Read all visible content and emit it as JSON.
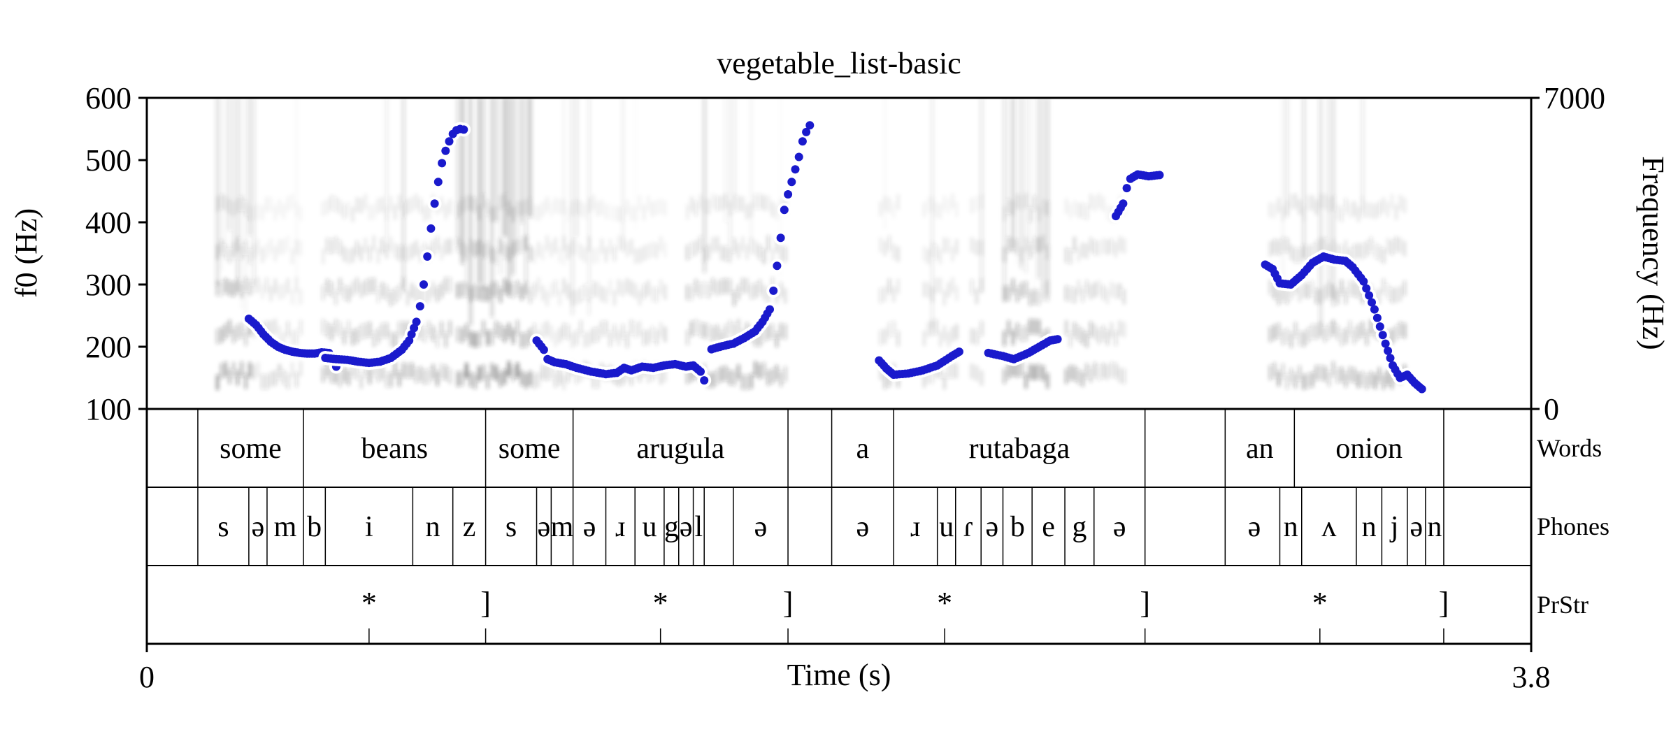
{
  "chart_data": {
    "type": "spectrogram-pitch",
    "title": "vegetable_list-basic",
    "xlabel": "Time (s)",
    "xlim": [
      0,
      3.8
    ],
    "x_tick_labels": [
      "0",
      "3.8"
    ],
    "y_left_label": "f0 (Hz)",
    "y_left_lim": [
      100,
      600
    ],
    "y_left_ticks": [
      "100",
      "200",
      "300",
      "400",
      "500",
      "600"
    ],
    "y_right_label": "Frequency (Hz)",
    "y_right_lim": [
      0,
      7000
    ],
    "y_right_ticks": [
      "0",
      "7000"
    ],
    "pitch_color": "#1a1acc",
    "pitch_segments": [
      [
        [
          0.28,
          245
        ],
        [
          0.3,
          235
        ],
        [
          0.32,
          220
        ],
        [
          0.34,
          208
        ],
        [
          0.36,
          200
        ],
        [
          0.38,
          195
        ],
        [
          0.4,
          192
        ],
        [
          0.42,
          190
        ],
        [
          0.44,
          189
        ],
        [
          0.46,
          189
        ],
        [
          0.48,
          191
        ],
        [
          0.5,
          190
        ],
        [
          0.51,
          180
        ],
        [
          0.52,
          168
        ]
      ],
      [
        [
          0.49,
          182
        ],
        [
          0.52,
          180
        ],
        [
          0.55,
          179
        ],
        [
          0.58,
          176
        ],
        [
          0.61,
          174
        ],
        [
          0.64,
          176
        ],
        [
          0.67,
          182
        ],
        [
          0.7,
          195
        ],
        [
          0.72,
          210
        ],
        [
          0.74,
          240
        ],
        [
          0.75,
          265
        ],
        [
          0.76,
          300
        ],
        [
          0.77,
          345
        ],
        [
          0.78,
          390
        ],
        [
          0.79,
          430
        ],
        [
          0.8,
          465
        ],
        [
          0.81,
          495
        ],
        [
          0.82,
          515
        ],
        [
          0.83,
          530
        ],
        [
          0.84,
          542
        ],
        [
          0.85,
          548
        ],
        [
          0.86,
          550
        ],
        [
          0.87,
          549
        ]
      ],
      [
        [
          1.07,
          210
        ],
        [
          1.09,
          195
        ],
        [
          1.1,
          180
        ],
        [
          1.12,
          175
        ],
        [
          1.15,
          172
        ],
        [
          1.18,
          166
        ],
        [
          1.22,
          160
        ],
        [
          1.26,
          156
        ],
        [
          1.29,
          158
        ],
        [
          1.31,
          166
        ],
        [
          1.33,
          162
        ],
        [
          1.36,
          168
        ],
        [
          1.39,
          166
        ],
        [
          1.42,
          170
        ],
        [
          1.45,
          172
        ],
        [
          1.48,
          168
        ],
        [
          1.5,
          170
        ],
        [
          1.52,
          160
        ],
        [
          1.53,
          146
        ]
      ],
      [
        [
          1.55,
          196
        ],
        [
          1.58,
          201
        ],
        [
          1.61,
          205
        ],
        [
          1.64,
          214
        ],
        [
          1.67,
          225
        ],
        [
          1.69,
          240
        ],
        [
          1.71,
          260
        ],
        [
          1.72,
          290
        ],
        [
          1.73,
          330
        ],
        [
          1.74,
          375
        ],
        [
          1.75,
          420
        ],
        [
          1.76,
          445
        ],
        [
          1.77,
          465
        ],
        [
          1.78,
          485
        ],
        [
          1.79,
          505
        ],
        [
          1.8,
          530
        ],
        [
          1.81,
          545
        ],
        [
          1.82,
          556
        ]
      ],
      [
        [
          2.01,
          178
        ],
        [
          2.03,
          165
        ],
        [
          2.05,
          155
        ],
        [
          2.09,
          157
        ],
        [
          2.13,
          162
        ],
        [
          2.17,
          170
        ],
        [
          2.21,
          185
        ],
        [
          2.23,
          192
        ]
      ],
      [
        [
          2.31,
          190
        ],
        [
          2.35,
          185
        ],
        [
          2.38,
          180
        ],
        [
          2.42,
          190
        ],
        [
          2.45,
          200
        ],
        [
          2.48,
          210
        ],
        [
          2.5,
          212
        ]
      ],
      [
        [
          2.66,
          410
        ],
        [
          2.68,
          430
        ],
        [
          2.69,
          455
        ],
        [
          2.7,
          470
        ],
        [
          2.72,
          477
        ],
        [
          2.75,
          474
        ],
        [
          2.78,
          476
        ]
      ],
      [
        [
          3.07,
          332
        ],
        [
          3.09,
          325
        ],
        [
          3.11,
          302
        ],
        [
          3.14,
          300
        ],
        [
          3.17,
          315
        ],
        [
          3.2,
          335
        ],
        [
          3.23,
          345
        ],
        [
          3.26,
          340
        ],
        [
          3.29,
          338
        ],
        [
          3.31,
          328
        ],
        [
          3.34,
          305
        ],
        [
          3.37,
          260
        ],
        [
          3.4,
          205
        ],
        [
          3.42,
          170
        ],
        [
          3.44,
          150
        ],
        [
          3.46,
          155
        ],
        [
          3.48,
          142
        ],
        [
          3.5,
          132
        ]
      ]
    ],
    "spectrogram_regions": [
      [
        0.19,
        0.29,
        0.78
      ],
      [
        0.29,
        0.43,
        0.3
      ],
      [
        0.48,
        0.84,
        0.55
      ],
      [
        0.85,
        1.06,
        0.92
      ],
      [
        1.06,
        1.43,
        0.35
      ],
      [
        1.48,
        1.76,
        0.6
      ],
      [
        2.01,
        2.07,
        0.4
      ],
      [
        2.13,
        2.23,
        0.35
      ],
      [
        2.26,
        2.3,
        0.35
      ],
      [
        2.35,
        2.48,
        0.75
      ],
      [
        2.52,
        2.61,
        0.55
      ],
      [
        2.61,
        2.69,
        0.4
      ],
      [
        3.08,
        3.46,
        0.6
      ]
    ],
    "tiers": [
      {
        "name": "Words",
        "boundaries": [
          0.14,
          0.43,
          0.93,
          1.17,
          1.76,
          1.88,
          2.05,
          2.74,
          2.96,
          3.15,
          3.56
        ],
        "labels": [
          {
            "text": "some",
            "t": 0.285
          },
          {
            "text": "beans",
            "t": 0.68
          },
          {
            "text": "some",
            "t": 1.05
          },
          {
            "text": "arugula",
            "t": 1.465
          },
          {
            "text": "a",
            "t": 1.965
          },
          {
            "text": "rutabaga",
            "t": 2.395
          },
          {
            "text": "an",
            "t": 3.055
          },
          {
            "text": "onion",
            "t": 3.355
          }
        ]
      },
      {
        "name": "Phones",
        "boundaries": [
          0.14,
          0.28,
          0.33,
          0.43,
          0.49,
          0.73,
          0.84,
          0.93,
          1.07,
          1.11,
          1.17,
          1.26,
          1.34,
          1.42,
          1.46,
          1.5,
          1.53,
          1.61,
          1.76,
          1.88,
          2.05,
          2.17,
          2.22,
          2.29,
          2.35,
          2.43,
          2.52,
          2.6,
          2.74,
          2.96,
          3.11,
          3.17,
          3.32,
          3.39,
          3.46,
          3.51,
          3.56
        ],
        "labels": [
          {
            "text": "s",
            "t": 0.21
          },
          {
            "text": "ə",
            "t": 0.305
          },
          {
            "text": "m",
            "t": 0.38
          },
          {
            "text": "b",
            "t": 0.46
          },
          {
            "text": "i",
            "t": 0.61
          },
          {
            "text": "n",
            "t": 0.785
          },
          {
            "text": "z",
            "t": 0.885
          },
          {
            "text": "s",
            "t": 1.0
          },
          {
            "text": "ə",
            "t": 1.09
          },
          {
            "text": "m",
            "t": 1.14
          },
          {
            "text": "ə",
            "t": 1.215
          },
          {
            "text": "ɹ",
            "t": 1.3
          },
          {
            "text": "u",
            "t": 1.38
          },
          {
            "text": "g",
            "t": 1.44
          },
          {
            "text": "ə",
            "t": 1.48
          },
          {
            "text": "l",
            "t": 1.515
          },
          {
            "text": "ə",
            "t": 1.685
          },
          {
            "text": "ə",
            "t": 1.965
          },
          {
            "text": "ɹ",
            "t": 2.11
          },
          {
            "text": "u",
            "t": 2.195
          },
          {
            "text": "ɾ",
            "t": 2.255
          },
          {
            "text": "ə",
            "t": 2.32
          },
          {
            "text": "b",
            "t": 2.39
          },
          {
            "text": "e",
            "t": 2.475
          },
          {
            "text": "g",
            "t": 2.56
          },
          {
            "text": "ə",
            "t": 2.67
          },
          {
            "text": "ə",
            "t": 3.04
          },
          {
            "text": "n",
            "t": 3.14
          },
          {
            "text": "ʌ",
            "t": 3.245
          },
          {
            "text": "n",
            "t": 3.355
          },
          {
            "text": "j",
            "t": 3.425
          },
          {
            "text": "ə",
            "t": 3.485
          },
          {
            "text": "n",
            "t": 3.535
          }
        ]
      },
      {
        "name": "PrStr",
        "points": [
          {
            "text": "*",
            "t": 0.61
          },
          {
            "text": "]",
            "t": 0.93
          },
          {
            "text": "*",
            "t": 1.41
          },
          {
            "text": "]",
            "t": 1.76
          },
          {
            "text": "*",
            "t": 2.19
          },
          {
            "text": "]",
            "t": 2.74
          },
          {
            "text": "*",
            "t": 3.22
          },
          {
            "text": "]",
            "t": 3.56
          }
        ]
      }
    ]
  }
}
